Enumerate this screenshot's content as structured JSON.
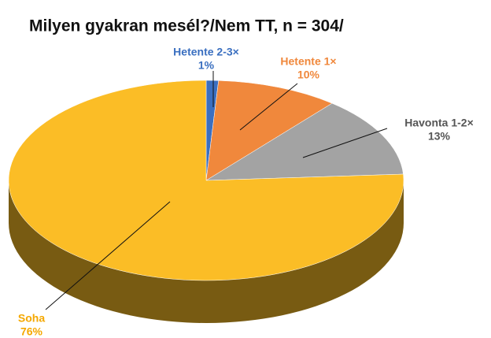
{
  "chart_data": {
    "type": "pie3d",
    "title": "Milyen gyakran mesél?/Nem TT, n = 304/",
    "categories": [
      "Hetente 2-3×",
      "Hetente 1×",
      "Havonta 1-2×",
      "Soha"
    ],
    "values": [
      1,
      10,
      13,
      76
    ],
    "value_labels": [
      "1%",
      "10%",
      "13%",
      "76%"
    ],
    "colors": [
      "#3a6fc0",
      "#f0883c",
      "#a3a3a3",
      "#fbbd26"
    ]
  }
}
